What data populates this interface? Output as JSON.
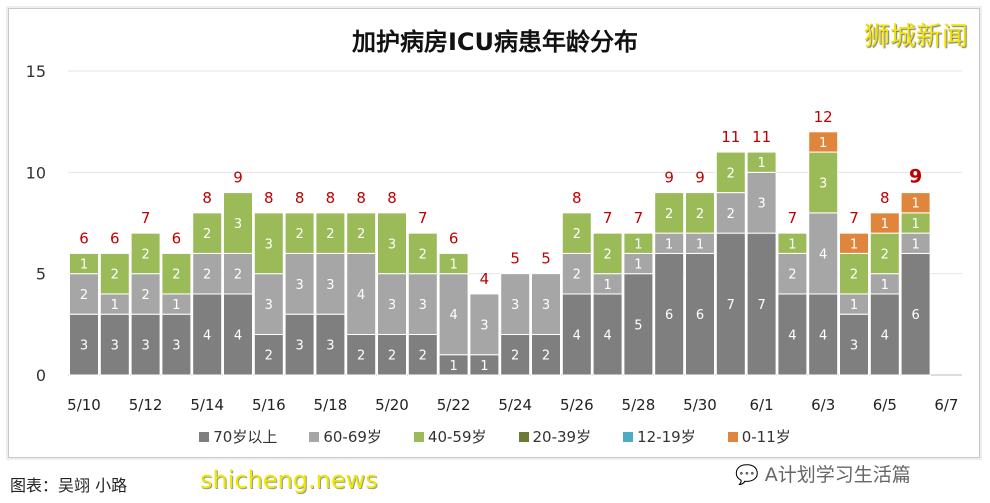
{
  "chart_data": {
    "type": "bar",
    "stacked": true,
    "title": "加护病房ICU病患年龄分布",
    "categories": [
      "5/10",
      "5/11",
      "5/12",
      "5/13",
      "5/14",
      "5/15",
      "5/16",
      "5/17",
      "5/18",
      "5/19",
      "5/20",
      "5/21",
      "5/22",
      "5/23",
      "5/24",
      "5/25",
      "5/26",
      "5/27",
      "5/28",
      "5/29",
      "5/30",
      "5/31",
      "6/1",
      "6/2",
      "6/3",
      "6/4",
      "6/5",
      "6/6"
    ],
    "x_tick_labels": [
      "5/10",
      "5/12",
      "5/14",
      "5/16",
      "5/18",
      "5/20",
      "5/22",
      "5/24",
      "5/26",
      "5/28",
      "5/30",
      "6/1",
      "6/3",
      "6/5",
      "6/7"
    ],
    "y_ticks": [
      0,
      5,
      10,
      15
    ],
    "ylim": [
      0,
      15
    ],
    "grid": true,
    "legend_position": "bottom",
    "series": [
      {
        "name": "70岁以上",
        "color": "#7f7f7f",
        "values": [
          3,
          3,
          3,
          3,
          4,
          4,
          2,
          3,
          3,
          2,
          2,
          2,
          1,
          1,
          2,
          2,
          4,
          4,
          5,
          6,
          6,
          7,
          7,
          4,
          4,
          3,
          4,
          6
        ]
      },
      {
        "name": "60-69岁",
        "color": "#a6a6a6",
        "values": [
          2,
          1,
          2,
          1,
          2,
          2,
          3,
          3,
          3,
          4,
          3,
          3,
          4,
          3,
          3,
          3,
          2,
          1,
          1,
          1,
          1,
          2,
          3,
          2,
          4,
          1,
          1,
          1
        ]
      },
      {
        "name": "40-59岁",
        "color": "#9bbb59",
        "values": [
          1,
          2,
          2,
          2,
          2,
          3,
          3,
          2,
          2,
          2,
          3,
          2,
          1,
          0,
          0,
          0,
          2,
          2,
          1,
          2,
          2,
          2,
          1,
          1,
          3,
          2,
          2,
          1
        ]
      },
      {
        "name": "20-39岁",
        "color": "#6b7a34",
        "values": [
          0,
          0,
          0,
          0,
          0,
          0,
          0,
          0,
          0,
          0,
          0,
          0,
          0,
          0,
          0,
          0,
          0,
          0,
          0,
          0,
          0,
          0,
          0,
          0,
          0,
          0,
          0,
          0
        ]
      },
      {
        "name": "12-19岁",
        "color": "#4bacc6",
        "values": [
          0,
          0,
          0,
          0,
          0,
          0,
          0,
          0,
          0,
          0,
          0,
          0,
          0,
          0,
          0,
          0,
          0,
          0,
          0,
          0,
          0,
          0,
          0,
          0,
          0,
          0,
          0,
          0
        ]
      },
      {
        "name": "0-11岁",
        "color": "#e0863c",
        "values": [
          0,
          0,
          0,
          0,
          0,
          0,
          0,
          0,
          0,
          0,
          0,
          0,
          0,
          0,
          0,
          0,
          0,
          0,
          0,
          0,
          0,
          0,
          0,
          0,
          1,
          1,
          1,
          1
        ]
      }
    ],
    "totals": [
      6,
      6,
      7,
      6,
      8,
      9,
      8,
      8,
      8,
      8,
      8,
      7,
      6,
      4,
      5,
      5,
      8,
      7,
      7,
      9,
      9,
      11,
      11,
      7,
      12,
      7,
      8,
      9
    ],
    "total_label_color": "#c00000"
  },
  "brand": "狮城新闻",
  "credit": "图表：吴翊 小路",
  "watermark": "shicheng.news",
  "wechat": "A计划学习生活篇"
}
